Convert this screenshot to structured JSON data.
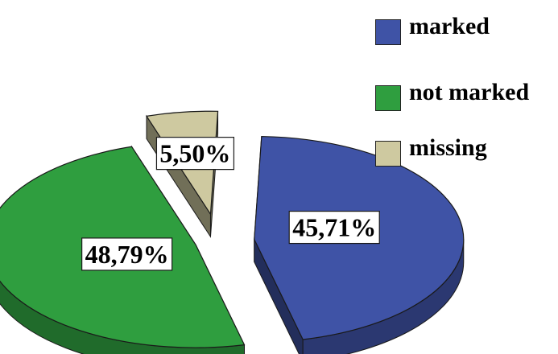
{
  "chart_data": {
    "type": "pie",
    "style": "3d-exploded",
    "title": "",
    "categories": [
      "marked",
      "not marked",
      "missing"
    ],
    "values": [
      45.71,
      48.79,
      5.5
    ],
    "data_labels": [
      "45,71%",
      "48,79%",
      "5,50%"
    ],
    "colors": [
      "#3f53a6",
      "#2f9e3f",
      "#cec9a0"
    ],
    "legend_position": "top-right"
  },
  "legend": [
    {
      "label": "marked",
      "color": "#3f53a6"
    },
    {
      "label": "not marked",
      "color": "#2f9e3f"
    },
    {
      "label": "missing",
      "color": "#cec9a0"
    }
  ]
}
